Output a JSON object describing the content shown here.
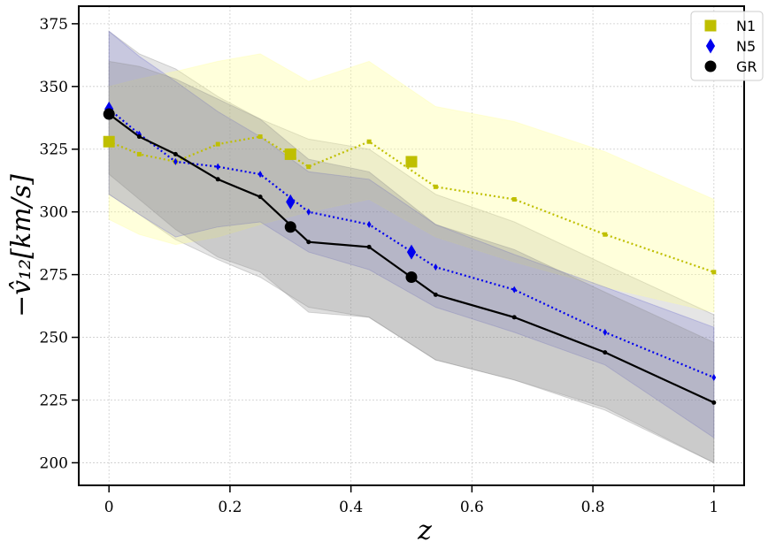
{
  "chart_data": {
    "type": "line",
    "xlabel": "z",
    "ylabel": "−v̂₁₂[km/s]",
    "xlim": [
      -0.05,
      1.05
    ],
    "ylim": [
      191,
      382
    ],
    "xticks": [
      0,
      0.2,
      0.4,
      0.6,
      0.8,
      1
    ],
    "xtick_labels": [
      "0",
      "0.2",
      "0.4",
      "0.6",
      "0.8",
      "1"
    ],
    "yticks": [
      200,
      225,
      250,
      275,
      300,
      325,
      350,
      375
    ],
    "ytick_labels": [
      "200",
      "225",
      "250",
      "275",
      "300",
      "325",
      "350",
      "375"
    ],
    "grid": true,
    "legend_position": "top-right",
    "series": [
      {
        "name": "N1",
        "color": "#bfbf00",
        "marker": "square",
        "linestyle": "dotted",
        "x": [
          0,
          0.05,
          0.11,
          0.18,
          0.25,
          0.33,
          0.43,
          0.54,
          0.67,
          0.82,
          1
        ],
        "y": [
          328,
          323,
          320,
          327,
          330,
          318,
          328,
          310,
          305,
          291,
          276
        ],
        "band_upper": [
          350,
          353,
          356,
          360,
          363,
          352,
          360,
          342,
          336,
          324,
          305
        ],
        "band_lower": [
          297,
          291,
          287,
          290,
          295,
          300,
          305,
          290,
          280,
          270,
          260
        ],
        "band_color": "#ffff99",
        "big_markers": {
          "x": [
            0,
            0.3,
            0.5
          ],
          "y": [
            328,
            323,
            320
          ]
        }
      },
      {
        "name": "N5",
        "color": "#0000ee",
        "marker": "diamond",
        "linestyle": "dotted",
        "x": [
          0,
          0.05,
          0.11,
          0.18,
          0.25,
          0.33,
          0.43,
          0.54,
          0.67,
          0.82,
          1
        ],
        "y": [
          341,
          331,
          320,
          318,
          315,
          300,
          295,
          278,
          269,
          252,
          234
        ],
        "band_upper": [
          372,
          362,
          352,
          340,
          330,
          316,
          313,
          295,
          283,
          270,
          254
        ],
        "band_lower": [
          307,
          299,
          290,
          294,
          296,
          284,
          277,
          262,
          252,
          239,
          210
        ],
        "band_color": "#6666cc",
        "big_markers": {
          "x": [
            0,
            0.3,
            0.5
          ],
          "y": [
            341,
            304,
            284
          ]
        }
      },
      {
        "name": "GR",
        "color": "#000000",
        "marker": "circle",
        "linestyle": "solid",
        "x": [
          0,
          0.05,
          0.11,
          0.18,
          0.25,
          0.33,
          0.43,
          0.54,
          0.67,
          0.82,
          1
        ],
        "y": [
          339,
          330,
          323,
          313,
          306,
          288,
          286,
          267,
          258,
          244,
          224
        ],
        "band_upper": [
          360,
          358,
          353,
          345,
          337,
          321,
          316,
          295,
          285,
          268,
          248
        ],
        "band_lower": [
          315,
          305,
          293,
          282,
          276,
          260,
          258,
          241,
          233,
          222,
          200
        ],
        "band_color": "#888888",
        "big_markers": {
          "x": [
            0,
            0.3,
            0.5
          ],
          "y": [
            339,
            294,
            274
          ]
        }
      }
    ],
    "outer_gray_band": {
      "x": [
        0,
        0.05,
        0.11,
        0.18,
        0.25,
        0.33,
        0.43,
        0.54,
        0.67,
        0.82,
        1
      ],
      "upper": [
        372,
        363,
        357,
        346,
        337,
        329,
        325,
        307,
        296,
        279,
        259
      ],
      "lower": [
        307,
        299,
        289,
        281,
        274,
        262,
        258,
        241,
        233,
        221,
        200
      ]
    }
  }
}
